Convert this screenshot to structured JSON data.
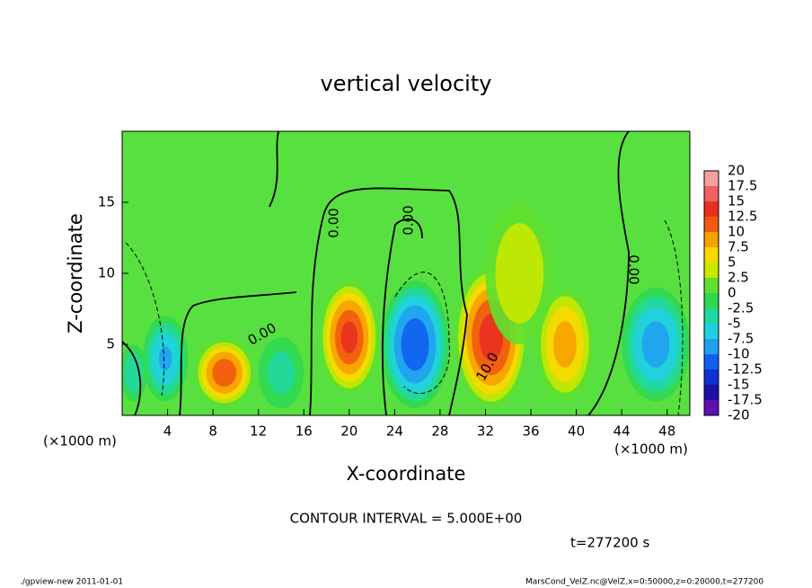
{
  "chart_data": {
    "type": "contour",
    "title": "vertical velocity",
    "xlabel": "X-coordinate",
    "ylabel": "Z-coordinate",
    "x_unit": "(×1000 m)",
    "xlim": [
      0,
      50
    ],
    "ylim": [
      0,
      20
    ],
    "xticks": [
      4,
      8,
      12,
      16,
      20,
      24,
      28,
      32,
      36,
      40,
      44,
      48
    ],
    "yticks": [
      5,
      10,
      15
    ],
    "levels": [
      20,
      17.5,
      15,
      12.5,
      10,
      7.5,
      5,
      2.5,
      0,
      -2.5,
      -5,
      -7.5,
      -10,
      -12.5,
      -15,
      -17.5,
      -20
    ],
    "colors": [
      "#f4a0a0",
      "#f06060",
      "#e83020",
      "#f05a10",
      "#f8a000",
      "#f8d800",
      "#c8e800",
      "#60e030",
      "#30d850",
      "#20d8a0",
      "#20d0e0",
      "#20a0f0",
      "#1060f0",
      "#1030d0",
      "#2010a0",
      "#6010b0"
    ],
    "cells": [
      {
        "x": 9,
        "z": 3,
        "value": 12,
        "xw": 2.6,
        "zw": 2.4
      },
      {
        "x": 20,
        "z": 5.5,
        "value": 13,
        "xw": 2.6,
        "zw": 4
      },
      {
        "x": 25.8,
        "z": 5,
        "value": -12,
        "xw": 3,
        "zw": 4.5
      },
      {
        "x": 32.5,
        "z": 5.5,
        "value": 14,
        "xw": 3.2,
        "zw": 5
      },
      {
        "x": 39,
        "z": 5,
        "value": 9,
        "xw": 2.5,
        "zw": 4
      },
      {
        "x": 3.8,
        "z": 4,
        "value": -8,
        "xw": 2,
        "zw": 3
      },
      {
        "x": 47,
        "z": 5,
        "value": -9,
        "xw": 3,
        "zw": 4
      },
      {
        "x": 35,
        "z": 10,
        "value": 5,
        "xw": 3,
        "zw": 5
      },
      {
        "x": 14,
        "z": 3,
        "value": -4,
        "xw": 2,
        "zw": 2.5
      },
      {
        "x": 1,
        "z": 3,
        "value": -5,
        "xw": 1.2,
        "zw": 2
      }
    ],
    "contour_labels": [
      "0.00",
      "0.00",
      "0.00",
      "0.00",
      "10.0"
    ],
    "annotation": "CONTOUR INTERVAL = 5.000E+00",
    "time_label": "t=277200 s",
    "footer_left": "./gpview-new  2011-01-01",
    "footer_right": "MarsCond_VelZ.nc@VelZ,x=0:50000,z=0:20000,t=277200"
  }
}
